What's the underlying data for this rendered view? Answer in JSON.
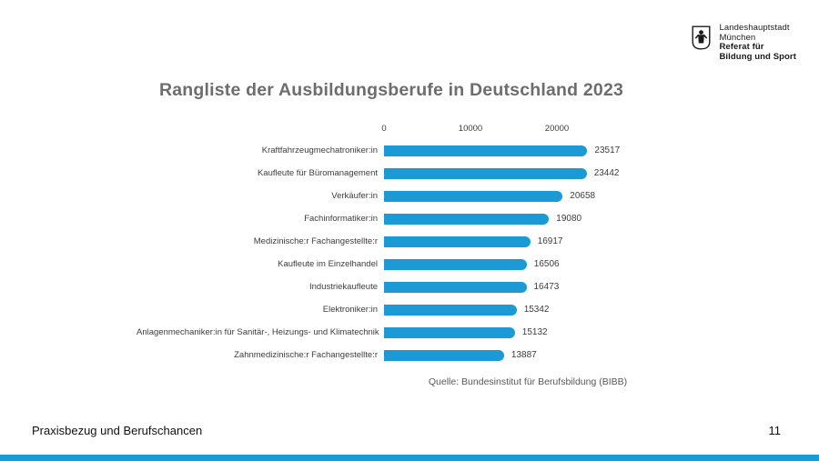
{
  "header": {
    "logo": {
      "icon": "munich-coat-of-arms-icon",
      "lines": [
        "Landeshauptstadt",
        "München",
        "Referat für",
        "Bildung und Sport"
      ]
    }
  },
  "title": "Rangliste der Ausbildungsberufe in Deutschland 2023",
  "chart_data": {
    "type": "bar",
    "orientation": "horizontal",
    "title": "Rangliste der Ausbildungsberufe in Deutschland 2023",
    "categories": [
      "Kraftfahrzeugmechatroniker:in",
      "Kaufleute für Büromanagement",
      "Verkäufer:in",
      "Fachinformatiker:in",
      "Medizinische:r Fachangestellte:r",
      "Kaufleute im Einzelhandel",
      "Industriekaufleute",
      "Elektroniker:in",
      "Anlagenmechaniker:in für Sanitär-, Heizungs- und Klimatechnik",
      "Zahnmedizinische:r Fachangestellte:r"
    ],
    "values": [
      23517,
      23442,
      20658,
      19080,
      16917,
      16506,
      16473,
      15342,
      15132,
      13887
    ],
    "xticks": [
      0,
      10000,
      20000
    ],
    "xlim": [
      0,
      25000
    ],
    "grid": false,
    "legend": false,
    "value_labels": true,
    "bar_color": "#1b9ad6",
    "source": "Quelle: Bundesinstitut für Berufsbildung (BIBB)"
  },
  "footer": {
    "left": "Praxisbezug und Berufschancen",
    "page_number": "11"
  },
  "colors": {
    "accent_blue": "#1b9ad6",
    "title_gray": "#6d6d6d",
    "text_dark": "#3d3d3d"
  }
}
